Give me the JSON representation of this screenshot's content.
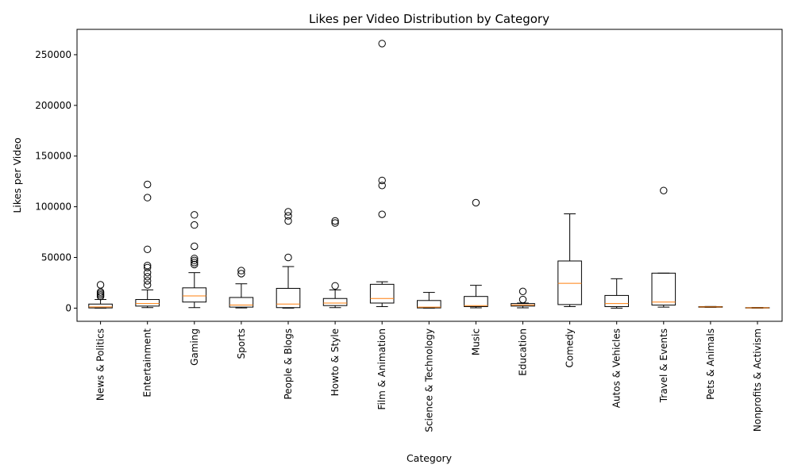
{
  "chart_data": {
    "type": "boxplot",
    "title": "Likes per Video Distribution by Category",
    "xlabel": "Category",
    "ylabel": "Likes per Video",
    "ylim": [
      -13000,
      275000
    ],
    "yticks": [
      0,
      50000,
      100000,
      150000,
      200000,
      250000
    ],
    "grid": false,
    "colors": {
      "box": "#000000",
      "median": "#ff7f0e"
    },
    "categories": [
      {
        "name": "News & Politics",
        "whisker_low": 0,
        "q1": 200,
        "median": 1200,
        "q3": 4000,
        "whisker_high": 8500,
        "outliers": [
          11500,
          13000,
          14500,
          16000,
          23000
        ]
      },
      {
        "name": "Entertainment",
        "whisker_low": 500,
        "q1": 2000,
        "median": 4500,
        "q3": 8500,
        "whisker_high": 18000,
        "outliers": [
          23000,
          27000,
          31000,
          35000,
          40000,
          42000,
          58000,
          109000,
          122000
        ]
      },
      {
        "name": "Gaming",
        "whisker_low": 500,
        "q1": 6000,
        "median": 12000,
        "q3": 20000,
        "whisker_high": 35000,
        "outliers": [
          43000,
          45000,
          47000,
          49000,
          61000,
          82000,
          92000
        ]
      },
      {
        "name": "Sports",
        "whisker_low": 200,
        "q1": 1000,
        "median": 3000,
        "q3": 10500,
        "whisker_high": 24000,
        "outliers": [
          34000,
          37000
        ]
      },
      {
        "name": "People & Blogs",
        "whisker_low": 0,
        "q1": 500,
        "median": 4000,
        "q3": 19500,
        "whisker_high": 41000,
        "outliers": [
          50000,
          86000,
          91000,
          95000
        ]
      },
      {
        "name": "Howto & Style",
        "whisker_low": 500,
        "q1": 2500,
        "median": 5000,
        "q3": 9500,
        "whisker_high": 18000,
        "outliers": [
          22000,
          84000,
          86000
        ]
      },
      {
        "name": "Film & Animation",
        "whisker_low": 1500,
        "q1": 5000,
        "median": 9500,
        "q3": 23500,
        "whisker_high": 26000,
        "outliers": [
          92500,
          121000,
          126000,
          261000
        ]
      },
      {
        "name": "Science & Technology",
        "whisker_low": 0,
        "q1": 200,
        "median": 1000,
        "q3": 7500,
        "whisker_high": 15500,
        "outliers": []
      },
      {
        "name": "Music",
        "whisker_low": 300,
        "q1": 1500,
        "median": 2500,
        "q3": 11500,
        "whisker_high": 22500,
        "outliers": [
          104000
        ]
      },
      {
        "name": "Education",
        "whisker_low": 300,
        "q1": 2000,
        "median": 3000,
        "q3": 4500,
        "whisker_high": 5000,
        "outliers": [
          8500,
          16500
        ]
      },
      {
        "name": "Comedy",
        "whisker_low": 1500,
        "q1": 3500,
        "median": 24500,
        "q3": 46500,
        "whisker_high": 93000,
        "outliers": []
      },
      {
        "name": "Autos & Vehicles",
        "whisker_low": 0,
        "q1": 1500,
        "median": 4500,
        "q3": 12500,
        "whisker_high": 29000,
        "outliers": []
      },
      {
        "name": "Travel & Events",
        "whisker_low": 1000,
        "q1": 3000,
        "median": 6000,
        "q3": 34500,
        "whisker_high": 34500,
        "outliers": [
          116000
        ]
      },
      {
        "name": "Pets & Animals",
        "whisker_low": 800,
        "q1": 900,
        "median": 1200,
        "q3": 1500,
        "whisker_high": 1600,
        "outliers": []
      },
      {
        "name": "Nonprofits & Activism",
        "whisker_low": 0,
        "q1": 100,
        "median": 300,
        "q3": 500,
        "whisker_high": 600,
        "outliers": []
      }
    ]
  }
}
